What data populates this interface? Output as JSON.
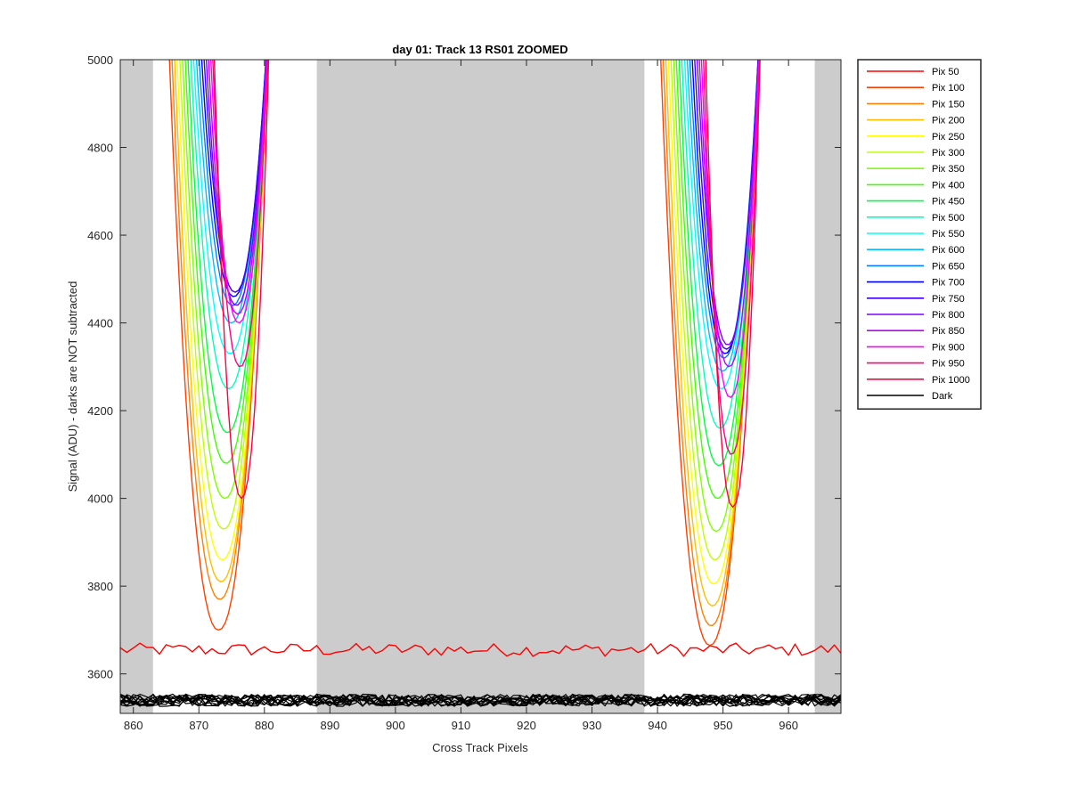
{
  "chart_data": {
    "type": "line",
    "title": "day 01: Track 13  RS01 ZOOMED",
    "xlabel": "Cross Track Pixels",
    "ylabel": "Signal (ADU) - darks are NOT subtracted",
    "xlim": [
      858,
      968
    ],
    "ylim": [
      3510,
      5000
    ],
    "xticks": [
      860,
      870,
      880,
      890,
      900,
      910,
      920,
      930,
      940,
      950,
      960
    ],
    "yticks": [
      3600,
      3800,
      4000,
      4200,
      4400,
      4600,
      4800,
      5000
    ],
    "grid": false,
    "legend_position": "outside-right",
    "shaded_regions": [
      [
        858,
        863
      ],
      [
        888,
        938
      ],
      [
        964,
        968
      ]
    ],
    "series": [
      {
        "name": "Pix 50",
        "color": "#ff0000",
        "baseline": 3655
      },
      {
        "name": "Pix 100",
        "color": "#ff4000",
        "minLeft": 3700,
        "minRight": 3665
      },
      {
        "name": "Pix 150",
        "color": "#ff8000",
        "minLeft": 3770,
        "minRight": 3710
      },
      {
        "name": "Pix 200",
        "color": "#ffbf00",
        "minLeft": 3810,
        "minRight": 3755
      },
      {
        "name": "Pix 250",
        "color": "#ffff00",
        "minLeft": 3860,
        "minRight": 3805
      },
      {
        "name": "Pix 300",
        "color": "#bfff00",
        "minLeft": 3930,
        "minRight": 3860
      },
      {
        "name": "Pix 350",
        "color": "#80ff00",
        "minLeft": 4000,
        "minRight": 3925
      },
      {
        "name": "Pix 400",
        "color": "#40ff00",
        "minLeft": 4080,
        "minRight": 4000
      },
      {
        "name": "Pix 450",
        "color": "#00ff40",
        "minLeft": 4150,
        "minRight": 4075
      },
      {
        "name": "Pix 500",
        "color": "#00ffbf",
        "minLeft": 4250,
        "minRight": 4160
      },
      {
        "name": "Pix 550",
        "color": "#00ffff",
        "minLeft": 4330,
        "minRight": 4250
      },
      {
        "name": "Pix 600",
        "color": "#00bfff",
        "minLeft": 4400,
        "minRight": 4290
      },
      {
        "name": "Pix 650",
        "color": "#0080ff",
        "minLeft": 4440,
        "minRight": 4320
      },
      {
        "name": "Pix 700",
        "color": "#0000ff",
        "minLeft": 4460,
        "minRight": 4330
      },
      {
        "name": "Pix 750",
        "color": "#4000ff",
        "minLeft": 4470,
        "minRight": 4340
      },
      {
        "name": "Pix 800",
        "color": "#8000ff",
        "minLeft": 4440,
        "minRight": 4350
      },
      {
        "name": "Pix 850",
        "color": "#bf00ff",
        "minLeft": 4420,
        "minRight": 4300
      },
      {
        "name": "Pix 900",
        "color": "#ff00ff",
        "minLeft": 4400,
        "minRight": 4230
      },
      {
        "name": "Pix 950",
        "color": "#ff0080",
        "minLeft": 4300,
        "minRight": 4100
      },
      {
        "name": "Pix 1000",
        "color": "#ff0040",
        "minLeft": 4000,
        "minRight": 3980
      },
      {
        "name": "Dark",
        "color": "#000000",
        "baseline": 3540
      }
    ],
    "dips": [
      {
        "center": 873,
        "halfWidth": 8
      },
      {
        "center": 948,
        "halfWidth": 8
      }
    ]
  }
}
